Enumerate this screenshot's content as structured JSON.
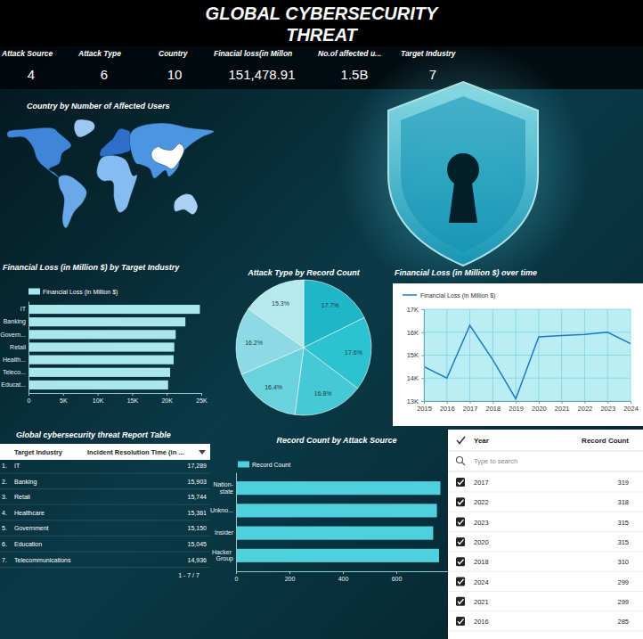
{
  "header": {
    "title_lines": [
      "GLOBAL CYBERSECURITY",
      "THREAT"
    ]
  },
  "kpis": [
    {
      "label": "Attack Source",
      "value": "4"
    },
    {
      "label": "Attack Type",
      "value": "6"
    },
    {
      "label": "Country",
      "value": "10"
    },
    {
      "label": "Finacial loss(in Millon",
      "value": "151,478.91"
    },
    {
      "label": "No.of affected u...",
      "value": "1.5B"
    },
    {
      "label": "Target Industry",
      "value": "7"
    }
  ],
  "chart_data": [
    {
      "type": "map",
      "title": "Country by Number of Affected Users"
    },
    {
      "type": "bar",
      "title": "Financial Loss (in Million $) by Target Industry",
      "orientation": "horizontal",
      "categories": [
        "IT",
        "Banking",
        "Govern...",
        "Retail",
        "Health...",
        "Teleco...",
        "Educat..."
      ],
      "series": [
        {
          "name": "Financial Loss (in Million $)",
          "color": "#a9e6ee",
          "values": [
            24800,
            22700,
            21300,
            21100,
            21000,
            20500,
            20200
          ]
        }
      ],
      "xlim": [
        0,
        25000
      ],
      "xticks": [
        0,
        {
          "value": 5000,
          "label": "5K"
        },
        {
          "value": 10000,
          "label": "10K"
        },
        {
          "value": 15000,
          "label": "15K"
        },
        {
          "value": 20000,
          "label": "20K"
        },
        {
          "value": 25000,
          "label": "25K"
        }
      ],
      "legend": "top-left"
    },
    {
      "type": "pie",
      "title": "Attack Type by Record Count",
      "values": [
        17.7,
        17.6,
        16.8,
        16.4,
        16.2,
        15.3
      ],
      "value_labels": [
        "17.7%",
        "17.6%",
        "16.8%",
        "16.4%",
        "16.2%",
        "15.3%"
      ],
      "colors": [
        "#1fb6c7",
        "#2cc2d0",
        "#45c9d6",
        "#68d2dd",
        "#8cdbe4",
        "#b6e9ef"
      ],
      "data_labels": true
    },
    {
      "type": "line",
      "title": "Financial Loss (in Million $) over time",
      "x": [
        2015,
        2016,
        2017,
        2018,
        2019,
        2020,
        2021,
        2022,
        2023,
        2024
      ],
      "xlim": [
        2015,
        2024
      ],
      "xticks": [
        2015,
        2016,
        2017,
        2018,
        2019,
        2020,
        2021,
        2022,
        2023,
        2024
      ],
      "ylim": [
        13000,
        17000
      ],
      "yticks": [
        {
          "value": 13000,
          "label": "13K"
        },
        {
          "value": 14000,
          "label": "14K"
        },
        {
          "value": 15000,
          "label": "15K"
        },
        {
          "value": 16000,
          "label": "16K"
        },
        {
          "value": 17000,
          "label": "17K"
        }
      ],
      "grid": true,
      "legend": "top-left",
      "series": [
        {
          "name": "Financial Loss (in Million $)",
          "color": "#1f78c8",
          "values": [
            14500,
            14000,
            16300,
            14800,
            13100,
            15800,
            15850,
            15900,
            16000,
            15500
          ]
        }
      ]
    },
    {
      "type": "bar",
      "title": "Record Count by Attack Source",
      "orientation": "horizontal",
      "categories": [
        "Nation-state",
        "Unkno...",
        "Insider",
        "Hacker Group"
      ],
      "series": [
        {
          "name": "Record Count",
          "color": "#4fd0de",
          "values": [
            765,
            752,
            738,
            760
          ]
        }
      ],
      "xlim": [
        0,
        800
      ],
      "xticks": [
        0,
        200,
        400,
        600
      ],
      "legend": "top-left"
    }
  ],
  "table": {
    "title": "Global cybersecurity threat Report Table",
    "columns": [
      "Target Industry",
      "Incident Resolution Time (in ..."
    ],
    "rows": [
      [
        "1.",
        "IT",
        "17,289"
      ],
      [
        "2.",
        "Banking",
        "15,903"
      ],
      [
        "3.",
        "Retail",
        "15,744"
      ],
      [
        "4.",
        "Healthcare",
        "15,361"
      ],
      [
        "5.",
        "Government",
        "15,150"
      ],
      [
        "6.",
        "Education",
        "15,045"
      ],
      [
        "7.",
        "Telecommunications",
        "14,936"
      ]
    ],
    "pagination": "1 - 7 / 7"
  },
  "year_filter": {
    "columns": [
      "Year",
      "Record Count"
    ],
    "search_placeholder": "Type to search",
    "rows": [
      [
        "2017",
        "319"
      ],
      [
        "2022",
        "318"
      ],
      [
        "2023",
        "315"
      ],
      [
        "2020",
        "315"
      ],
      [
        "2018",
        "310"
      ],
      [
        "2024",
        "299"
      ],
      [
        "2021",
        "299"
      ],
      [
        "2016",
        "285"
      ]
    ]
  }
}
